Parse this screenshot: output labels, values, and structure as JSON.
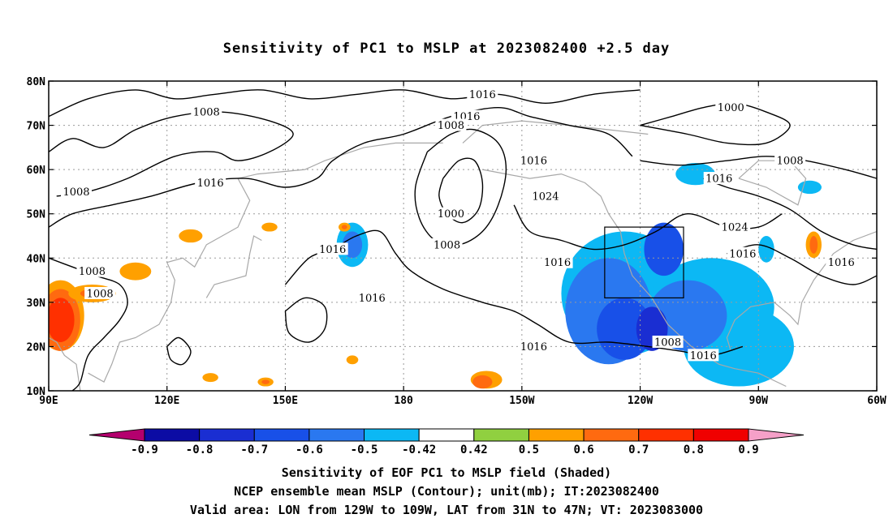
{
  "title": "Sensitivity of PC1 to MSLP at 2023082400 +2.5 day",
  "captions": [
    "Sensitivity of EOF PC1 to MSLP field (Shaded)",
    "NCEP ensemble mean MSLP (Contour); unit(mb); IT:2023082400",
    "Valid area: LON from 129W to 109W, LAT from 31N to 47N; VT: 2023083000"
  ],
  "map": {
    "lon_range": [
      90,
      300
    ],
    "lat_range": [
      10,
      80
    ],
    "lat_ticks": [
      "80N",
      "70N",
      "60N",
      "50N",
      "40N",
      "30N",
      "20N",
      "10N"
    ],
    "lon_ticks": [
      "90E",
      "120E",
      "150E",
      "180",
      "150W",
      "120W",
      "90W",
      "60W"
    ],
    "grid": true,
    "valid_area_box": {
      "lon": [
        231,
        251
      ],
      "lat": [
        31,
        47
      ]
    }
  },
  "colorbar": {
    "labels": [
      "-0.9",
      "-0.8",
      "-0.7",
      "-0.6",
      "-0.5",
      "-0.42",
      "0.42",
      "0.5",
      "0.6",
      "0.7",
      "0.8",
      "0.9"
    ],
    "colors": [
      "#b4006e",
      "#0c0ca4",
      "#1a2ed2",
      "#1850e8",
      "#2a78f0",
      "#0cb8f4",
      "#ffffff",
      "#90d040",
      "#ffa000",
      "#ff6a10",
      "#ff3000",
      "#f00000",
      "#f5a0c8"
    ]
  },
  "contour_labels": [
    {
      "text": "1016",
      "lon": 200,
      "lat": 77
    },
    {
      "text": "1008",
      "lon": 130,
      "lat": 73
    },
    {
      "text": "1016",
      "lon": 196,
      "lat": 72
    },
    {
      "text": "1008",
      "lon": 192,
      "lat": 70
    },
    {
      "text": "1000",
      "lon": 263,
      "lat": 74
    },
    {
      "text": "1016",
      "lon": 213,
      "lat": 62
    },
    {
      "text": "1008",
      "lon": 278,
      "lat": 62
    },
    {
      "text": "1016",
      "lon": 260,
      "lat": 58
    },
    {
      "text": "1008",
      "lon": 97,
      "lat": 55
    },
    {
      "text": "1016",
      "lon": 131,
      "lat": 57
    },
    {
      "text": "1024",
      "lon": 216,
      "lat": 54
    },
    {
      "text": "1000",
      "lon": 192,
      "lat": 50
    },
    {
      "text": "1024",
      "lon": 264,
      "lat": 47
    },
    {
      "text": "1008",
      "lon": 191,
      "lat": 43
    },
    {
      "text": "1016",
      "lon": 162,
      "lat": 42
    },
    {
      "text": "1016",
      "lon": 266,
      "lat": 41
    },
    {
      "text": "1016",
      "lon": 219,
      "lat": 39
    },
    {
      "text": "1016",
      "lon": 291,
      "lat": 39
    },
    {
      "text": "1008",
      "lon": 101,
      "lat": 37
    },
    {
      "text": "1008",
      "lon": 103,
      "lat": 32
    },
    {
      "text": "1016",
      "lon": 172,
      "lat": 31
    },
    {
      "text": "1016",
      "lon": 213,
      "lat": 20
    },
    {
      "text": "1008",
      "lon": 247,
      "lat": 21
    },
    {
      "text": "1016",
      "lon": 256,
      "lat": 18
    }
  ],
  "shaded_regions": [
    {
      "value": -0.5,
      "lon": 236,
      "lat": 32,
      "rx": 16,
      "ry": 14
    },
    {
      "value": -0.5,
      "lon": 258,
      "lat": 29,
      "rx": 16,
      "ry": 11
    },
    {
      "value": -0.5,
      "lon": 265,
      "lat": 20,
      "rx": 14,
      "ry": 9
    },
    {
      "value": -0.6,
      "lon": 232,
      "lat": 28,
      "rx": 11,
      "ry": 12
    },
    {
      "value": -0.6,
      "lon": 252,
      "lat": 27,
      "rx": 10,
      "ry": 8
    },
    {
      "value": -0.7,
      "lon": 236,
      "lat": 24,
      "rx": 7,
      "ry": 7
    },
    {
      "value": -0.7,
      "lon": 246,
      "lat": 42,
      "rx": 5,
      "ry": 6
    },
    {
      "value": -0.8,
      "lon": 243,
      "lat": 24,
      "rx": 4,
      "ry": 5
    },
    {
      "value": -0.5,
      "lon": 167,
      "lat": 43,
      "rx": 4,
      "ry": 5
    },
    {
      "value": -0.6,
      "lon": 167,
      "lat": 43,
      "rx": 2.5,
      "ry": 3
    },
    {
      "value": -0.5,
      "lon": 254,
      "lat": 59,
      "rx": 5,
      "ry": 2.5
    },
    {
      "value": -0.5,
      "lon": 283,
      "lat": 56,
      "rx": 3,
      "ry": 1.5
    },
    {
      "value": -0.5,
      "lon": 272,
      "lat": 42,
      "rx": 2,
      "ry": 3
    },
    {
      "value": 0.5,
      "lon": 284,
      "lat": 43,
      "rx": 2,
      "ry": 3
    },
    {
      "value": 0.6,
      "lon": 284,
      "lat": 43,
      "rx": 1,
      "ry": 2
    },
    {
      "value": 0.5,
      "lon": 93,
      "lat": 27,
      "rx": 6,
      "ry": 8
    },
    {
      "value": 0.6,
      "lon": 93,
      "lat": 26,
      "rx": 5,
      "ry": 7
    },
    {
      "value": 0.7,
      "lon": 93,
      "lat": 26,
      "rx": 3.5,
      "ry": 5
    },
    {
      "value": 0.5,
      "lon": 101,
      "lat": 32,
      "rx": 6,
      "ry": 2
    },
    {
      "value": 0.6,
      "lon": 101,
      "lat": 32,
      "rx": 3,
      "ry": 1
    },
    {
      "value": 0.5,
      "lon": 112,
      "lat": 37,
      "rx": 4,
      "ry": 2
    },
    {
      "value": 0.5,
      "lon": 126,
      "lat": 45,
      "rx": 3,
      "ry": 1.5
    },
    {
      "value": 0.5,
      "lon": 146,
      "lat": 47,
      "rx": 2,
      "ry": 1
    },
    {
      "value": 0.5,
      "lon": 131,
      "lat": 13,
      "rx": 2,
      "ry": 1
    },
    {
      "value": 0.5,
      "lon": 167,
      "lat": 17,
      "rx": 1.5,
      "ry": 1
    },
    {
      "value": 0.5,
      "lon": 201,
      "lat": 12.5,
      "rx": 4,
      "ry": 2
    },
    {
      "value": 0.6,
      "lon": 200,
      "lat": 12,
      "rx": 2.5,
      "ry": 1.5
    },
    {
      "value": 0.5,
      "lon": 145,
      "lat": 12,
      "rx": 2,
      "ry": 1
    },
    {
      "value": 0.6,
      "lon": 145,
      "lat": 12,
      "rx": 1,
      "ry": 0.5
    },
    {
      "value": 0.5,
      "lon": 165,
      "lat": 47,
      "rx": 1.5,
      "ry": 1
    },
    {
      "value": 0.6,
      "lon": 165,
      "lat": 47,
      "rx": 0.7,
      "ry": 0.5
    }
  ],
  "contours": [
    {
      "name": "arctic-1016-contour",
      "pts": [
        [
          90,
          72
        ],
        [
          100,
          76
        ],
        [
          112,
          78
        ],
        [
          122,
          76
        ],
        [
          132,
          77
        ],
        [
          144,
          78
        ],
        [
          156,
          76
        ],
        [
          168,
          77
        ],
        [
          180,
          78
        ],
        [
          192,
          76
        ],
        [
          204,
          77
        ],
        [
          216,
          75
        ],
        [
          228,
          77
        ],
        [
          240,
          78
        ]
      ]
    },
    {
      "name": "asia-1008-contour",
      "pts": [
        [
          90,
          64
        ],
        [
          96,
          67
        ],
        [
          104,
          65
        ],
        [
          112,
          69
        ],
        [
          122,
          72
        ],
        [
          134,
          73
        ],
        [
          146,
          71
        ],
        [
          152,
          68
        ],
        [
          146,
          64
        ],
        [
          138,
          62
        ],
        [
          132,
          64
        ],
        [
          122,
          63
        ],
        [
          110,
          58
        ],
        [
          100,
          55
        ],
        [
          92,
          54
        ]
      ]
    },
    {
      "name": "asia-1016-contour",
      "pts": [
        [
          90,
          47
        ],
        [
          96,
          50
        ],
        [
          106,
          52
        ],
        [
          116,
          54
        ],
        [
          128,
          57
        ],
        [
          140,
          58
        ],
        [
          150,
          56
        ],
        [
          158,
          58
        ],
        [
          162,
          62
        ],
        [
          170,
          66
        ],
        [
          180,
          68
        ],
        [
          192,
          72
        ],
        [
          204,
          74
        ],
        [
          212,
          72
        ],
        [
          222,
          70
        ],
        [
          232,
          68
        ],
        [
          238,
          63
        ]
      ]
    },
    {
      "name": "low-1008-contour",
      "pts": [
        [
          186,
          64
        ],
        [
          192,
          68
        ],
        [
          198,
          69
        ],
        [
          204,
          66
        ],
        [
          206,
          60
        ],
        [
          204,
          52
        ],
        [
          200,
          46
        ],
        [
          194,
          43
        ],
        [
          188,
          44
        ],
        [
          184,
          49
        ],
        [
          183,
          56
        ],
        [
          186,
          64
        ]
      ]
    },
    {
      "name": "low-1000-contour",
      "pts": [
        [
          190,
          58
        ],
        [
          194,
          62
        ],
        [
          198,
          62
        ],
        [
          200,
          57
        ],
        [
          199,
          51
        ],
        [
          195,
          48
        ],
        [
          191,
          50
        ],
        [
          189,
          54
        ],
        [
          190,
          58
        ]
      ]
    },
    {
      "name": "ridge-1024-contour",
      "pts": [
        [
          208,
          52
        ],
        [
          212,
          46
        ],
        [
          220,
          44
        ],
        [
          228,
          42
        ],
        [
          236,
          43
        ],
        [
          244,
          46
        ],
        [
          252,
          50
        ],
        [
          262,
          47
        ],
        [
          270,
          47
        ],
        [
          276,
          50
        ]
      ]
    },
    {
      "name": "pacific-1016-contour",
      "pts": [
        [
          150,
          34
        ],
        [
          156,
          40
        ],
        [
          162,
          42
        ],
        [
          168,
          45
        ],
        [
          174,
          46
        ],
        [
          178,
          41
        ],
        [
          182,
          37
        ],
        [
          190,
          33
        ],
        [
          200,
          30
        ],
        [
          208,
          28
        ],
        [
          214,
          25
        ],
        [
          222,
          21
        ],
        [
          232,
          21
        ],
        [
          242,
          20
        ],
        [
          250,
          19
        ],
        [
          258,
          18
        ],
        [
          266,
          20
        ]
      ]
    },
    {
      "name": "arctic-1000-contour",
      "pts": [
        [
          240,
          70
        ],
        [
          248,
          72
        ],
        [
          256,
          74
        ],
        [
          264,
          75
        ],
        [
          272,
          73
        ],
        [
          278,
          70
        ],
        [
          272,
          66
        ],
        [
          262,
          66
        ],
        [
          252,
          68
        ],
        [
          240,
          70
        ]
      ]
    },
    {
      "name": "north-atlantic-1008-contour",
      "pts": [
        [
          240,
          62
        ],
        [
          250,
          61
        ],
        [
          262,
          62
        ],
        [
          272,
          63
        ],
        [
          282,
          62
        ],
        [
          292,
          60
        ],
        [
          300,
          58
        ]
      ]
    },
    {
      "name": "subtropic-1016-contour",
      "pts": [
        [
          256,
          58
        ],
        [
          262,
          56
        ],
        [
          270,
          54
        ],
        [
          278,
          51
        ],
        [
          286,
          46
        ],
        [
          294,
          43
        ],
        [
          300,
          42
        ]
      ]
    },
    {
      "name": "atlantic-1016-contour",
      "pts": [
        [
          262,
          41
        ],
        [
          270,
          43
        ],
        [
          278,
          40
        ],
        [
          286,
          36
        ],
        [
          294,
          34
        ],
        [
          300,
          36
        ]
      ]
    },
    {
      "name": "west-1008-contour",
      "pts": [
        [
          90,
          40
        ],
        [
          96,
          38
        ],
        [
          102,
          36
        ],
        [
          108,
          34
        ],
        [
          110,
          30
        ],
        [
          108,
          26
        ],
        [
          104,
          22
        ],
        [
          100,
          18
        ],
        [
          98,
          12
        ],
        [
          96,
          10
        ]
      ]
    },
    {
      "name": "cell-1016-contour",
      "pts": [
        [
          150,
          28
        ],
        [
          155,
          31
        ],
        [
          160,
          29
        ],
        [
          160,
          24
        ],
        [
          156,
          21
        ],
        [
          151,
          23
        ],
        [
          150,
          28
        ]
      ]
    },
    {
      "name": "cell-b-1016-contour",
      "pts": [
        [
          120,
          20
        ],
        [
          123,
          22
        ],
        [
          126,
          19
        ],
        [
          124,
          16
        ],
        [
          121,
          17
        ],
        [
          120,
          20
        ]
      ]
    }
  ],
  "coastlines": [
    {
      "name": "north-america-west-coastline",
      "pts": [
        [
          200,
          60
        ],
        [
          206,
          59
        ],
        [
          212,
          58
        ],
        [
          220,
          59
        ],
        [
          226,
          57
        ],
        [
          230,
          54
        ],
        [
          232,
          50
        ],
        [
          235,
          46
        ],
        [
          236,
          41
        ],
        [
          238,
          36
        ],
        [
          243,
          31
        ],
        [
          247,
          25
        ],
        [
          253,
          20
        ],
        [
          260,
          16
        ],
        [
          264,
          15
        ],
        [
          270,
          14
        ],
        [
          277,
          11
        ]
      ]
    },
    {
      "name": "alaska-north-coastline",
      "pts": [
        [
          195,
          66
        ],
        [
          200,
          70
        ],
        [
          210,
          71
        ],
        [
          222,
          70
        ],
        [
          232,
          69
        ],
        [
          242,
          68
        ]
      ]
    },
    {
      "name": "east-asia-coastline",
      "pts": [
        [
          100,
          14
        ],
        [
          104,
          12
        ],
        [
          106,
          16
        ],
        [
          108,
          21
        ],
        [
          112,
          22
        ],
        [
          118,
          25
        ],
        [
          121,
          30
        ],
        [
          122,
          35
        ],
        [
          120,
          39
        ],
        [
          124,
          40
        ],
        [
          127,
          38
        ],
        [
          130,
          43
        ],
        [
          138,
          47
        ],
        [
          141,
          53
        ],
        [
          138,
          58
        ],
        [
          143,
          59
        ],
        [
          155,
          60
        ],
        [
          160,
          62
        ],
        [
          170,
          65
        ],
        [
          178,
          66
        ],
        [
          190,
          66
        ]
      ]
    },
    {
      "name": "japan-coastline",
      "pts": [
        [
          130,
          31
        ],
        [
          132,
          34
        ],
        [
          136,
          35
        ],
        [
          140,
          36
        ],
        [
          141,
          41
        ],
        [
          142,
          45
        ],
        [
          144,
          44
        ]
      ]
    },
    {
      "name": "gulf-coastline",
      "pts": [
        [
          263,
          19
        ],
        [
          262,
          22
        ],
        [
          264,
          26
        ],
        [
          268,
          29
        ],
        [
          274,
          30
        ],
        [
          278,
          27
        ],
        [
          280,
          25
        ],
        [
          281,
          30
        ],
        [
          284,
          35
        ],
        [
          289,
          41
        ],
        [
          294,
          44
        ],
        [
          300,
          46
        ]
      ]
    },
    {
      "name": "hudson-coastline",
      "pts": [
        [
          265,
          58
        ],
        [
          272,
          56
        ],
        [
          280,
          52
        ],
        [
          282,
          58
        ],
        [
          278,
          62
        ],
        [
          270,
          62
        ],
        [
          265,
          58
        ]
      ]
    },
    {
      "name": "india-coastline",
      "pts": [
        [
          90,
          22
        ],
        [
          92,
          21
        ],
        [
          94,
          18
        ],
        [
          97,
          16
        ],
        [
          98,
          10
        ]
      ]
    }
  ]
}
